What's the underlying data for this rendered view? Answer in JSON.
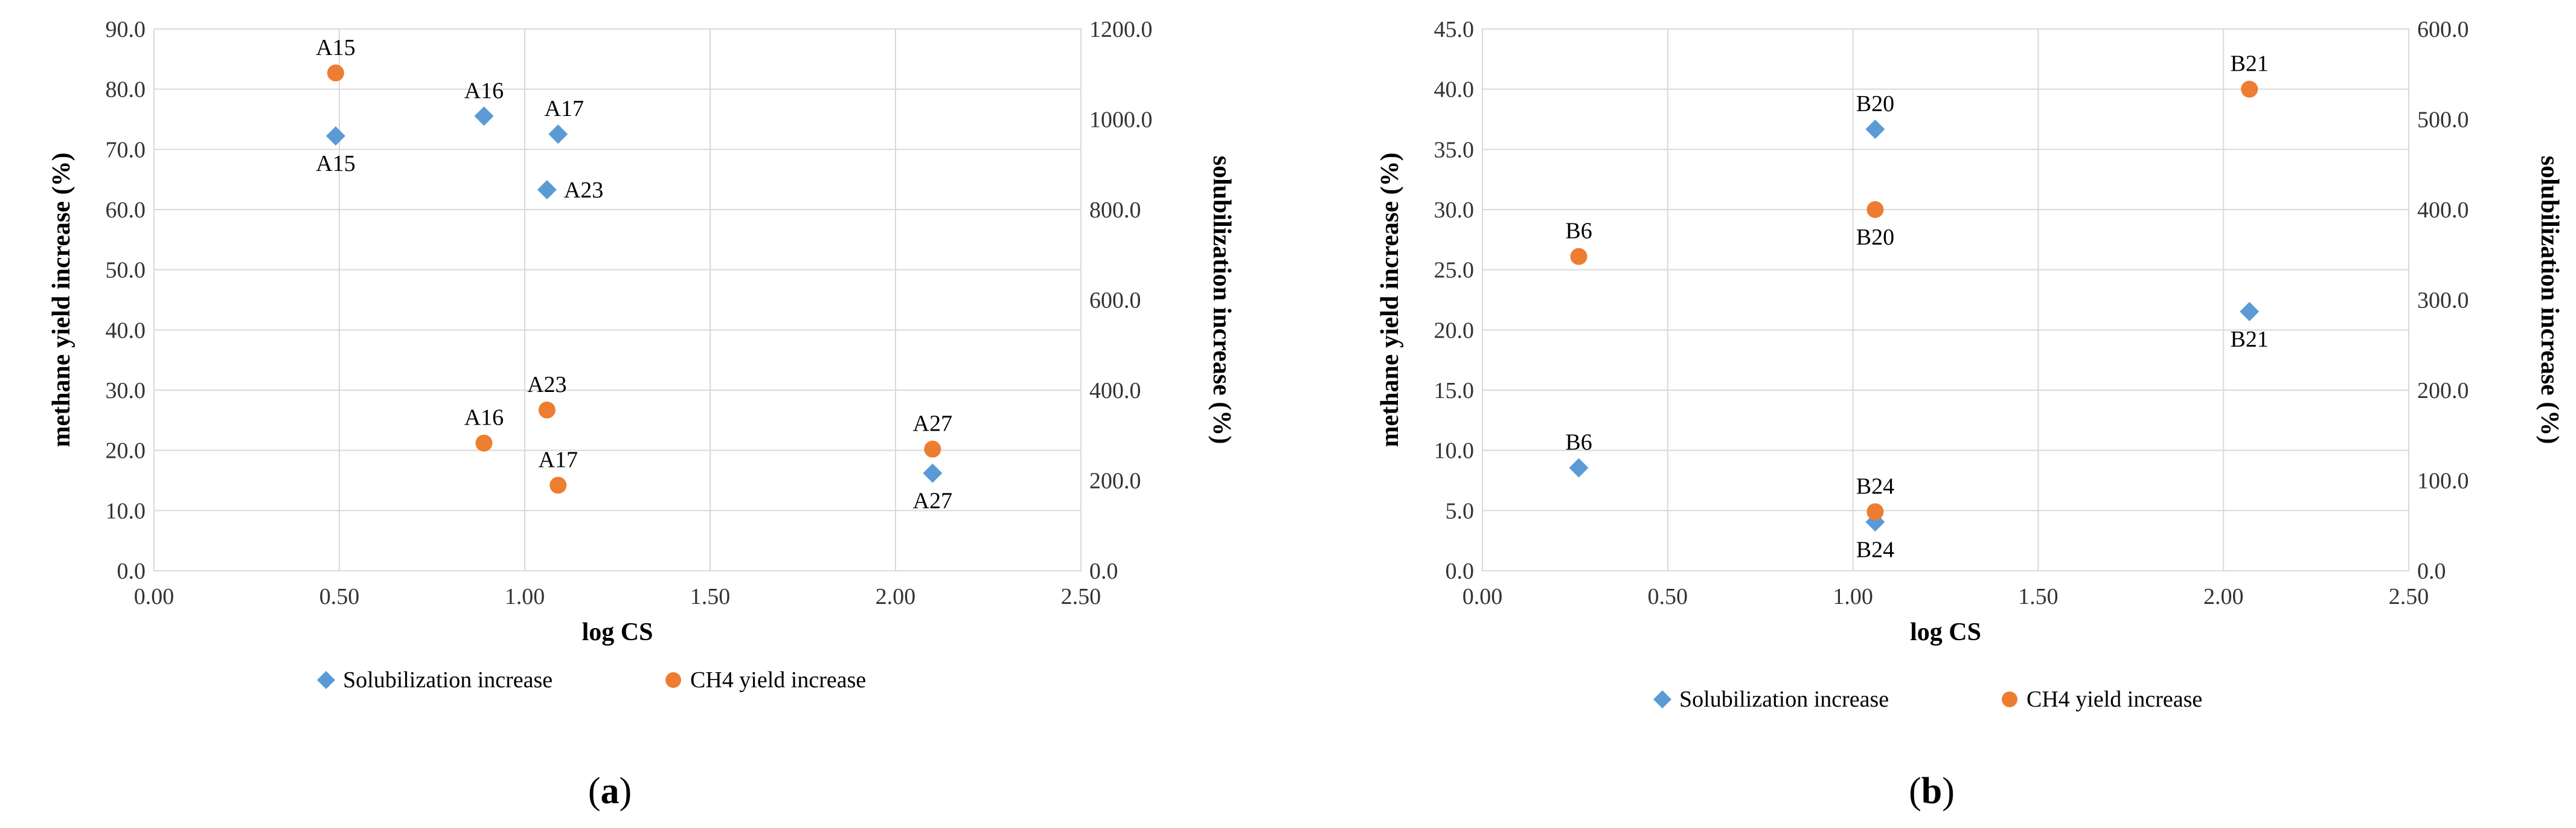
{
  "colors": {
    "solubilization": "#5B9BD5",
    "ch4": "#ED7D31",
    "grid": "#D9D9D9"
  },
  "chart_data": [
    {
      "type": "scatter",
      "panel": "a",
      "caption": "(a)",
      "caption_letter": "a",
      "xlabel": "log CS",
      "ylabel": "methane yield increase (%)",
      "y2label": "solubilization increase (%)",
      "xlim": [
        0,
        2.5
      ],
      "ylim": [
        0,
        90
      ],
      "y2lim": [
        0,
        1200
      ],
      "xticks": [
        "0.00",
        "0.50",
        "1.00",
        "1.50",
        "2.00",
        "2.50"
      ],
      "yticks": [
        "0.0",
        "10.0",
        "20.0",
        "30.0",
        "40.0",
        "50.0",
        "60.0",
        "70.0",
        "80.0",
        "90.0"
      ],
      "y2ticks": [
        "0.0",
        "200.0",
        "400.0",
        "600.0",
        "800.0",
        "1000.0",
        "1200.0"
      ],
      "grid": true,
      "legend": "bottom",
      "series": [
        {
          "name": "Solubilization increase",
          "axis": "y2",
          "marker": "diamond",
          "points": [
            {
              "label": "A15",
              "x": 0.49,
              "y": 963,
              "label_pos": "below"
            },
            {
              "label": "A16",
              "x": 0.89,
              "y": 1007,
              "label_pos": "above"
            },
            {
              "label": "A17",
              "x": 1.09,
              "y": 967,
              "label_pos": "above-right"
            },
            {
              "label": "A23",
              "x": 1.06,
              "y": 844,
              "label_pos": "right"
            },
            {
              "label": "A27",
              "x": 2.1,
              "y": 216,
              "label_pos": "below"
            }
          ]
        },
        {
          "name": "CH4 yield increase",
          "axis": "y",
          "marker": "circle",
          "points": [
            {
              "label": "A15",
              "x": 0.49,
              "y": 82.7,
              "label_pos": "above"
            },
            {
              "label": "A16",
              "x": 0.89,
              "y": 21.2,
              "label_pos": "above"
            },
            {
              "label": "A17",
              "x": 1.09,
              "y": 14.2,
              "label_pos": "above"
            },
            {
              "label": "A23",
              "x": 1.06,
              "y": 26.7,
              "label_pos": "above"
            },
            {
              "label": "A27",
              "x": 2.1,
              "y": 20.2,
              "label_pos": "above"
            }
          ]
        }
      ]
    },
    {
      "type": "scatter",
      "panel": "b",
      "caption": "(b)",
      "caption_letter": "b",
      "xlabel": "log CS",
      "ylabel": "methane yield increase (%)",
      "y2label": "solubilization increase (%)",
      "xlim": [
        0,
        2.5
      ],
      "ylim": [
        0,
        45
      ],
      "y2lim": [
        0,
        600
      ],
      "xticks": [
        "0.00",
        "0.50",
        "1.00",
        "1.50",
        "2.00",
        "2.50"
      ],
      "yticks": [
        "0.0",
        "5.0",
        "10.0",
        "15.0",
        "20.0",
        "25.0",
        "30.0",
        "35.0",
        "40.0",
        "45.0"
      ],
      "y2ticks": [
        "0.0",
        "100.0",
        "200.0",
        "300.0",
        "400.0",
        "500.0",
        "600.0"
      ],
      "grid": true,
      "legend": "bottom",
      "series": [
        {
          "name": "Solubilization increase",
          "axis": "y2",
          "marker": "diamond",
          "points": [
            {
              "label": "B6",
              "x": 0.26,
              "y": 114,
              "label_pos": "above"
            },
            {
              "label": "B20",
              "x": 1.06,
              "y": 489,
              "label_pos": "above"
            },
            {
              "label": "B21",
              "x": 2.07,
              "y": 287,
              "label_pos": "below"
            },
            {
              "label": "B24",
              "x": 1.06,
              "y": 54,
              "label_pos": "below"
            }
          ]
        },
        {
          "name": "CH4 yield increase",
          "axis": "y",
          "marker": "circle",
          "points": [
            {
              "label": "B6",
              "x": 0.26,
              "y": 26.1,
              "label_pos": "above"
            },
            {
              "label": "B20",
              "x": 1.06,
              "y": 30.0,
              "label_pos": "below"
            },
            {
              "label": "B21",
              "x": 2.07,
              "y": 40.0,
              "label_pos": "above"
            },
            {
              "label": "B24",
              "x": 1.06,
              "y": 4.9,
              "label_pos": "above"
            }
          ]
        }
      ]
    }
  ]
}
